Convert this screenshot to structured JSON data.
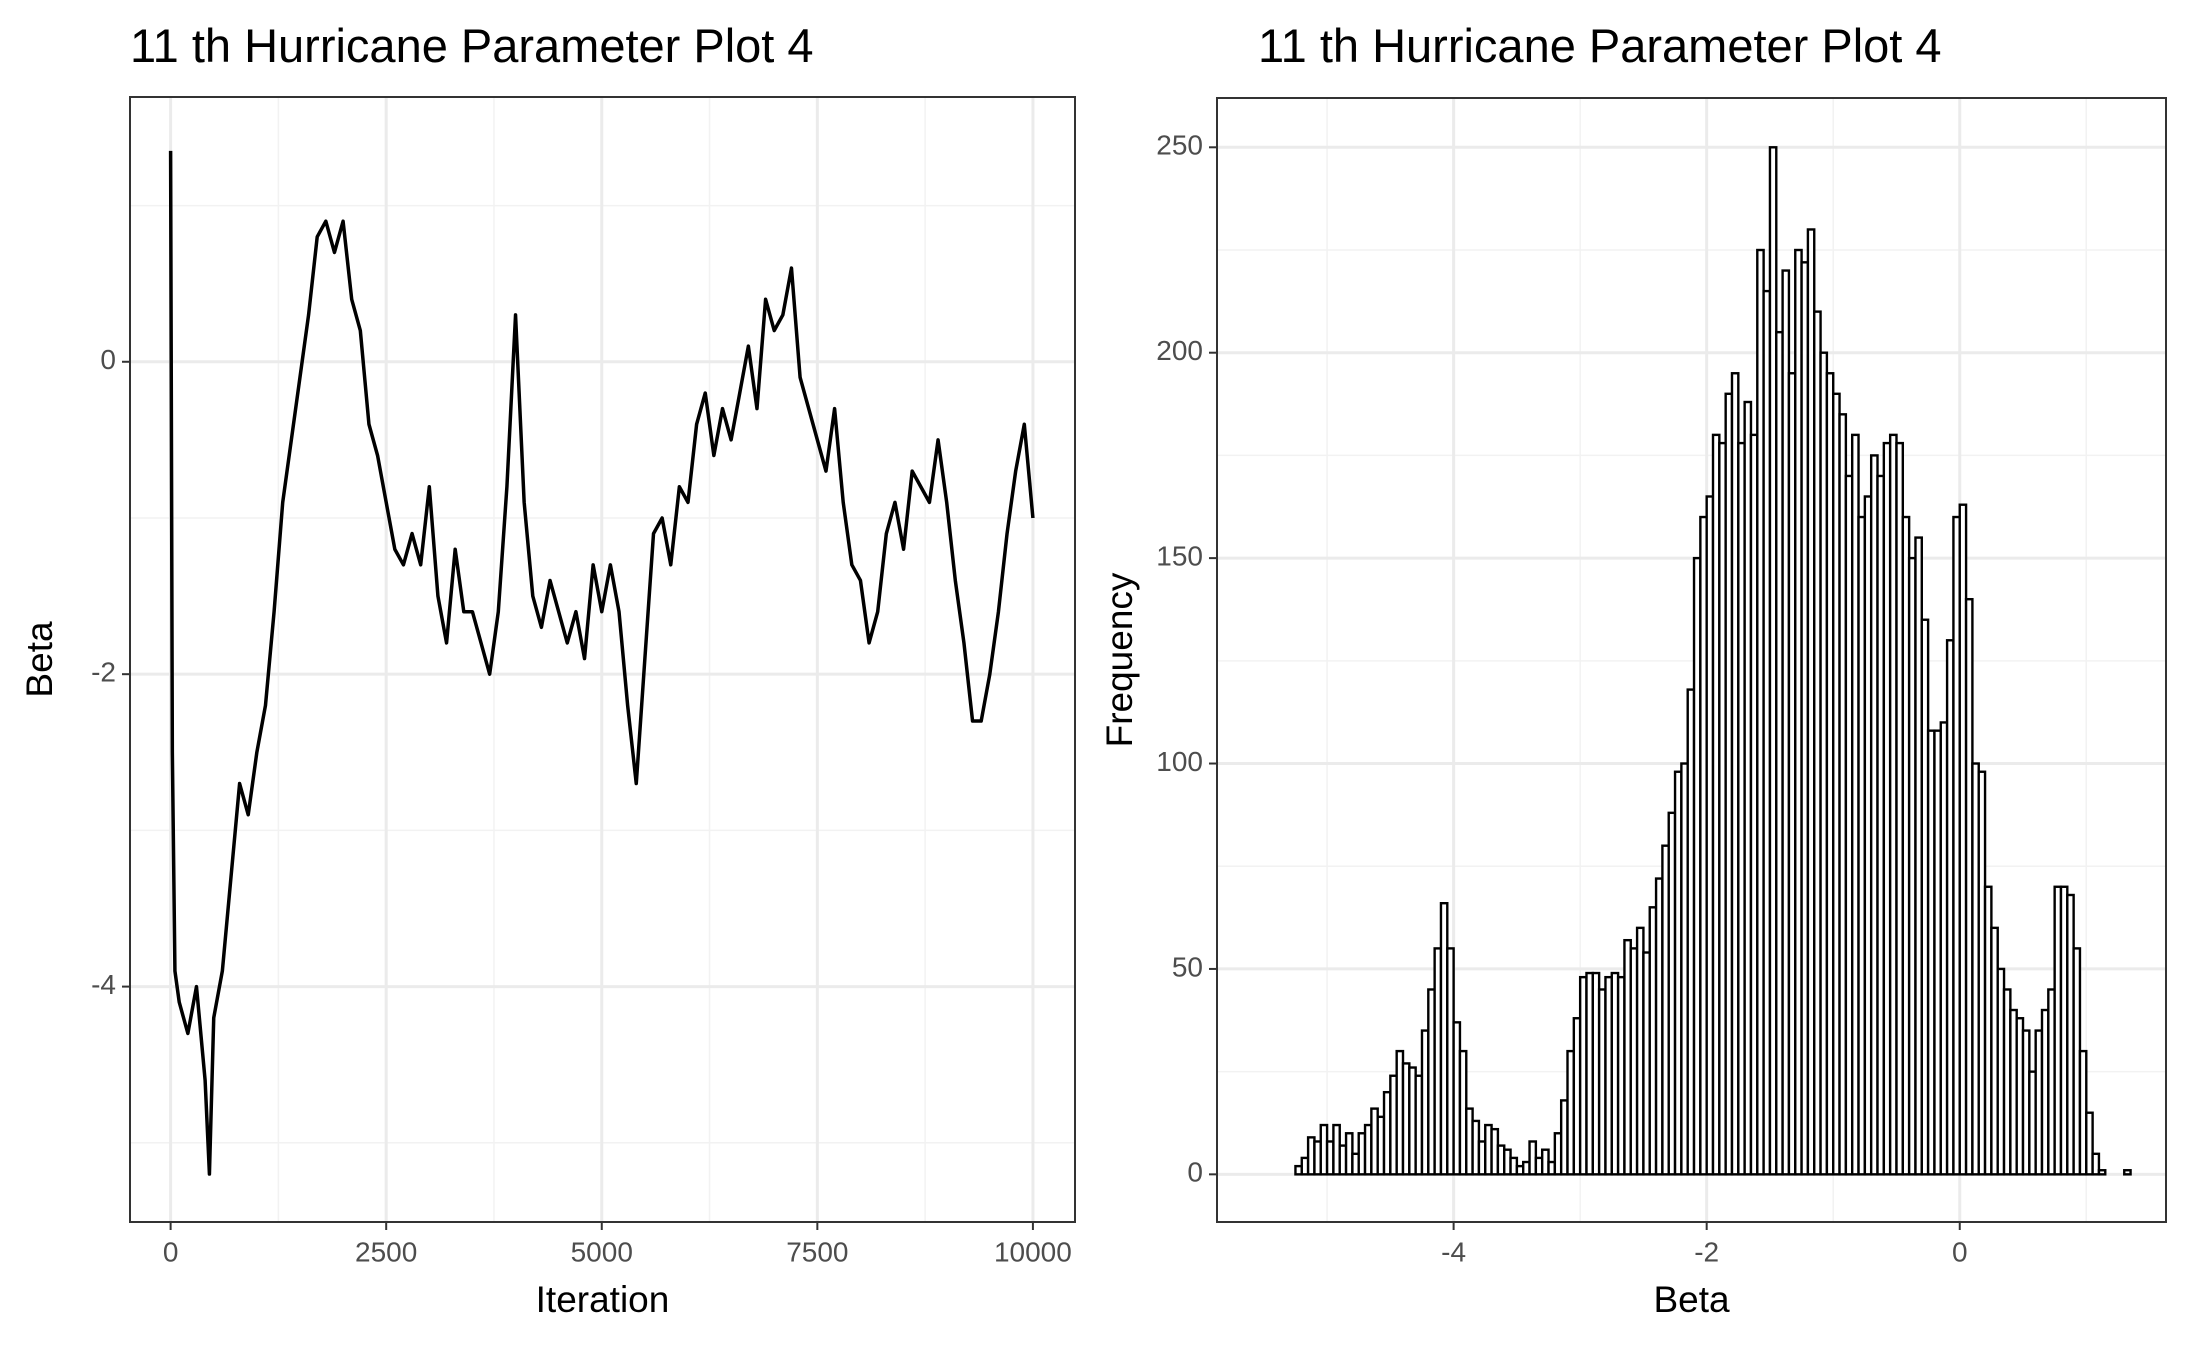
{
  "chart_data": [
    {
      "type": "line",
      "title": "11 th Hurricane Parameter Plot 4",
      "x_label": "Iteration",
      "y_label": "Beta",
      "color": "#000000",
      "x": [
        0,
        20,
        50,
        100,
        200,
        300,
        400,
        450,
        500,
        600,
        700,
        800,
        900,
        1000,
        1100,
        1200,
        1300,
        1400,
        1500,
        1600,
        1700,
        1800,
        1900,
        2000,
        2100,
        2200,
        2300,
        2400,
        2500,
        2600,
        2700,
        2800,
        2900,
        3000,
        3100,
        3200,
        3300,
        3400,
        3500,
        3600,
        3700,
        3800,
        3900,
        4000,
        4100,
        4200,
        4300,
        4400,
        4500,
        4600,
        4700,
        4800,
        4900,
        5000,
        5100,
        5200,
        5300,
        5400,
        5500,
        5600,
        5700,
        5800,
        5900,
        6000,
        6100,
        6200,
        6300,
        6400,
        6500,
        6600,
        6700,
        6800,
        6900,
        7000,
        7100,
        7200,
        7300,
        7400,
        7500,
        7600,
        7700,
        7800,
        7900,
        8000,
        8100,
        8200,
        8300,
        8400,
        8500,
        8600,
        8700,
        8800,
        8900,
        9000,
        9100,
        9200,
        9300,
        9400,
        9500,
        9600,
        9700,
        9800,
        9900,
        10000
      ],
      "values": [
        1.35,
        -2.5,
        -3.9,
        -4.1,
        -4.3,
        -4.0,
        -4.6,
        -5.2,
        -4.2,
        -3.9,
        -3.3,
        -2.7,
        -2.9,
        -2.5,
        -2.2,
        -1.6,
        -0.9,
        -0.5,
        -0.1,
        0.3,
        0.8,
        0.9,
        0.7,
        0.9,
        0.4,
        0.2,
        -0.4,
        -0.6,
        -0.9,
        -1.2,
        -1.3,
        -1.1,
        -1.3,
        -0.8,
        -1.5,
        -1.8,
        -1.2,
        -1.6,
        -1.6,
        -1.8,
        -2.0,
        -1.6,
        -0.8,
        0.3,
        -0.9,
        -1.5,
        -1.7,
        -1.4,
        -1.6,
        -1.8,
        -1.6,
        -1.9,
        -1.3,
        -1.6,
        -1.3,
        -1.6,
        -2.2,
        -2.7,
        -1.9,
        -1.1,
        -1.0,
        -1.3,
        -0.8,
        -0.9,
        -0.4,
        -0.2,
        -0.6,
        -0.3,
        -0.5,
        -0.2,
        0.1,
        -0.3,
        0.4,
        0.2,
        0.3,
        0.6,
        -0.1,
        -0.3,
        -0.5,
        -0.7,
        -0.3,
        -0.9,
        -1.3,
        -1.4,
        -1.8,
        -1.6,
        -1.1,
        -0.9,
        -1.2,
        -0.7,
        -0.8,
        -0.9,
        -0.5,
        -0.9,
        -1.4,
        -1.8,
        -2.3,
        -2.3,
        -2.0,
        -1.6,
        -1.1,
        -0.7,
        -0.4,
        -1.0
      ],
      "xlim": [
        -471,
        10488
      ],
      "xticks": [
        0,
        2500,
        5000,
        7500,
        10000
      ],
      "ylim": [
        -5.507,
        1.695
      ],
      "yticks": [
        -4,
        -2,
        0
      ],
      "grid": true
    },
    {
      "type": "histogram",
      "title": "11 th Hurricane Parameter Plot 4",
      "x_label": "Beta",
      "y_label": "Frequency",
      "color": "#ffffff",
      "edge_color": "#000000",
      "bins": [
        -5.25,
        -5.2,
        -5.15,
        -5.1,
        -5.05,
        -5,
        -4.95,
        -4.9,
        -4.85,
        -4.8,
        -4.75,
        -4.7,
        -4.65,
        -4.6,
        -4.55,
        -4.5,
        -4.45,
        -4.4,
        -4.35,
        -4.3,
        -4.25,
        -4.2,
        -4.15,
        -4.1,
        -4.05,
        -4,
        -3.95,
        -3.9,
        -3.85,
        -3.8,
        -3.75,
        -3.7,
        -3.65,
        -3.6,
        -3.55,
        -3.5,
        -3.45,
        -3.4,
        -3.35,
        -3.3,
        -3.25,
        -3.2,
        -3.15,
        -3.1,
        -3.05,
        -3,
        -2.95,
        -2.9,
        -2.85,
        -2.8,
        -2.75,
        -2.7,
        -2.65,
        -2.6,
        -2.55,
        -2.5,
        -2.45,
        -2.4,
        -2.35,
        -2.3,
        -2.25,
        -2.2,
        -2.15,
        -2.1,
        -2.05,
        -2,
        -1.95,
        -1.9,
        -1.85,
        -1.8,
        -1.75,
        -1.7,
        -1.65,
        -1.6,
        -1.55,
        -1.5,
        -1.45,
        -1.4,
        -1.35,
        -1.3,
        -1.25,
        -1.2,
        -1.15,
        -1.1,
        -1.05,
        -1,
        -0.95,
        -0.9,
        -0.85,
        -0.8,
        -0.75,
        -0.7,
        -0.65,
        -0.6,
        -0.55,
        -0.5,
        -0.45,
        -0.4,
        -0.35,
        -0.3,
        -0.25,
        -0.2,
        -0.15,
        -0.1,
        -0.05,
        0,
        0.05,
        0.1,
        0.15,
        0.2,
        0.25,
        0.3,
        0.35,
        0.4,
        0.45,
        0.5,
        0.55,
        0.6,
        0.65,
        0.7,
        0.75,
        0.8,
        0.85,
        0.9,
        0.95,
        1,
        1.05,
        1.1,
        1.15,
        1.2,
        1.25,
        1.3,
        1.35
      ],
      "values": [
        2,
        4,
        9,
        8,
        12,
        8,
        12,
        7,
        10,
        5,
        10,
        12,
        16,
        14,
        20,
        24,
        30,
        27,
        26,
        24,
        35,
        45,
        55,
        66,
        55,
        37,
        30,
        16,
        13,
        8,
        12,
        11,
        7,
        6,
        4,
        2,
        3,
        8,
        4,
        6,
        3,
        10,
        18,
        30,
        38,
        48,
        49,
        49,
        45,
        48,
        49,
        48,
        57,
        55,
        60,
        54,
        65,
        72,
        80,
        88,
        98,
        100,
        118,
        150,
        160,
        165,
        180,
        178,
        190,
        195,
        178,
        188,
        180,
        225,
        215,
        250,
        205,
        220,
        195,
        225,
        222,
        230,
        210,
        200,
        195,
        190,
        185,
        170,
        180,
        160,
        165,
        175,
        170,
        178,
        180,
        178,
        160,
        150,
        155,
        135,
        108,
        108,
        110,
        130,
        160,
        163,
        140,
        100,
        98,
        70,
        60,
        50,
        45,
        40,
        38,
        35,
        25,
        35,
        40,
        45,
        70,
        70,
        68,
        55,
        30,
        15,
        5,
        1,
        0,
        0,
        0,
        1
      ],
      "xlim": [
        -5.87,
        1.63
      ],
      "xticks": [
        -4,
        -2,
        0
      ],
      "ylim": [
        -11.6,
        262
      ],
      "yticks": [
        0,
        50,
        100,
        150,
        200,
        250
      ],
      "grid": true
    }
  ]
}
